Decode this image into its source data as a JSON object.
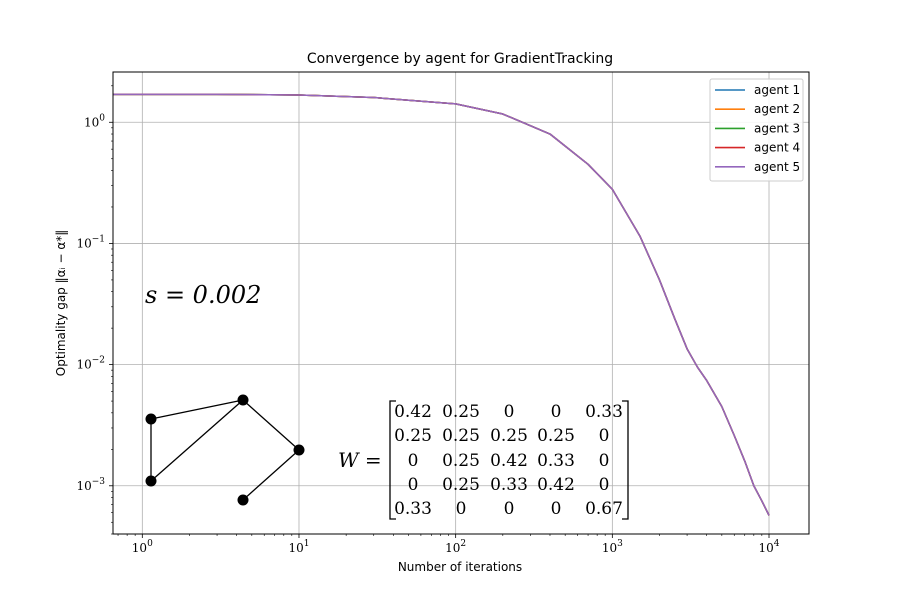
{
  "chart_data": {
    "type": "line",
    "title": "Convergence by agent for GradientTracking",
    "xlabel": "Number of iterations",
    "ylabel": "Optimality gap ‖αᵢ − α*‖",
    "xscale": "log",
    "yscale": "log",
    "xlim": [
      0.65,
      18000
    ],
    "ylim": [
      0.0004,
      2.6
    ],
    "grid": true,
    "legend_position": "top-right",
    "x_ticks": [
      {
        "value": 1,
        "base": "10",
        "exp": "0"
      },
      {
        "value": 10,
        "base": "10",
        "exp": "1"
      },
      {
        "value": 100,
        "base": "10",
        "exp": "2"
      },
      {
        "value": 1000,
        "base": "10",
        "exp": "3"
      },
      {
        "value": 10000,
        "base": "10",
        "exp": "4"
      }
    ],
    "y_ticks": [
      {
        "value": 1,
        "base": "10",
        "exp": "0"
      },
      {
        "value": 0.1,
        "base": "10",
        "exp": "−1"
      },
      {
        "value": 0.01,
        "base": "10",
        "exp": "−2"
      },
      {
        "value": 0.001,
        "base": "10",
        "exp": "−3"
      }
    ],
    "x": [
      0.65,
      1,
      3,
      10,
      30,
      100,
      200,
      400,
      700,
      1000,
      1500,
      2000,
      2500,
      3000,
      3500,
      4000,
      5000,
      6000,
      7000,
      8000,
      9000,
      10000
    ],
    "series": [
      {
        "name": "agent 1",
        "color": "#1f77b4",
        "values": [
          1.7,
          1.7,
          1.7,
          1.68,
          1.6,
          1.42,
          1.17,
          0.8,
          0.45,
          0.28,
          0.115,
          0.05,
          0.024,
          0.0135,
          0.0095,
          0.0074,
          0.0045,
          0.0026,
          0.0016,
          0.001,
          0.00075,
          0.00057
        ]
      },
      {
        "name": "agent 2",
        "color": "#ff7f0e",
        "values": [
          1.7,
          1.7,
          1.7,
          1.68,
          1.6,
          1.42,
          1.17,
          0.8,
          0.45,
          0.28,
          0.115,
          0.05,
          0.024,
          0.0135,
          0.0095,
          0.0074,
          0.0045,
          0.0026,
          0.0016,
          0.001,
          0.00075,
          0.00057
        ]
      },
      {
        "name": "agent 3",
        "color": "#2ca02c",
        "values": [
          1.7,
          1.7,
          1.7,
          1.68,
          1.6,
          1.42,
          1.17,
          0.8,
          0.45,
          0.28,
          0.115,
          0.05,
          0.024,
          0.0135,
          0.0095,
          0.0074,
          0.0045,
          0.0026,
          0.0016,
          0.001,
          0.00075,
          0.00057
        ]
      },
      {
        "name": "agent 4",
        "color": "#d62728",
        "values": [
          1.7,
          1.7,
          1.7,
          1.68,
          1.6,
          1.42,
          1.17,
          0.8,
          0.45,
          0.28,
          0.115,
          0.05,
          0.024,
          0.0135,
          0.0095,
          0.0074,
          0.0045,
          0.0026,
          0.0016,
          0.001,
          0.00075,
          0.00057
        ]
      },
      {
        "name": "agent 5",
        "color": "#9467bd",
        "values": [
          1.7,
          1.7,
          1.7,
          1.68,
          1.6,
          1.42,
          1.17,
          0.8,
          0.45,
          0.28,
          0.115,
          0.05,
          0.024,
          0.0135,
          0.0095,
          0.0074,
          0.0045,
          0.0026,
          0.0016,
          0.001,
          0.00075,
          0.00057
        ]
      }
    ],
    "annotations": {
      "s_label": "s = 0.002",
      "matrix_label": "W =",
      "matrix": [
        [
          "0.42",
          "0.25",
          "0",
          "0",
          "0.33"
        ],
        [
          "0.25",
          "0.25",
          "0.25",
          "0.25",
          "0"
        ],
        [
          "0",
          "0.25",
          "0.42",
          "0.33",
          "0"
        ],
        [
          "0",
          "0.25",
          "0.33",
          "0.42",
          "0"
        ],
        [
          "0.33",
          "0",
          "0",
          "0",
          "0.67"
        ]
      ]
    }
  }
}
